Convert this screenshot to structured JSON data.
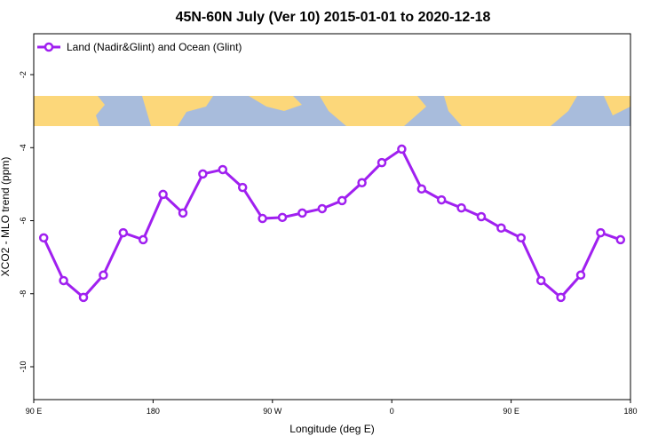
{
  "chart_data": {
    "type": "line",
    "title": "45N-60N July (Ver 10)   2015-01-01 to 2020-12-18",
    "x_label": "Longitude (deg E)",
    "y_label": "XCO2 - MLO trend (ppm)",
    "x": [
      97.5,
      112.5,
      127.5,
      142.5,
      157.5,
      172.5,
      187.5,
      202.5,
      217.5,
      232.5,
      247.5,
      262.5,
      277.5,
      292.5,
      307.5,
      322.5,
      337.5,
      352.5,
      367.5,
      382.5,
      397.5,
      412.5,
      427.5,
      442.5,
      457.5,
      472.5,
      487.5,
      502.5,
      517.5,
      532.5
    ],
    "series": [
      {
        "name": "Land (Nadir&Glint) and Ocean (Glint)",
        "color": "#a020f0",
        "values": [
          -6.47,
          -7.64,
          -8.1,
          -7.49,
          -6.33,
          -6.52,
          -5.28,
          -5.79,
          -4.72,
          -4.6,
          -5.09,
          -5.94,
          -5.91,
          -5.79,
          -5.67,
          -5.45,
          -4.96,
          -4.41,
          -4.04,
          -5.13,
          -5.43,
          -5.65,
          -5.89,
          -6.2,
          -6.47,
          -7.64,
          -8.1,
          -7.49,
          -6.33,
          -6.52
        ]
      }
    ],
    "xlim": [
      90,
      540
    ],
    "xticks": [
      {
        "value": 90,
        "label": "90 E"
      },
      {
        "value": 180,
        "label": "180"
      },
      {
        "value": 270,
        "label": "90 W"
      },
      {
        "value": 360,
        "label": "0"
      },
      {
        "value": 450,
        "label": "90 E"
      },
      {
        "value": 540,
        "label": "180"
      }
    ],
    "ylim": [
      -10.9,
      -0.88
    ],
    "yticks": [
      -2,
      -4,
      -6,
      -8,
      -10
    ],
    "legend": "top-left"
  }
}
